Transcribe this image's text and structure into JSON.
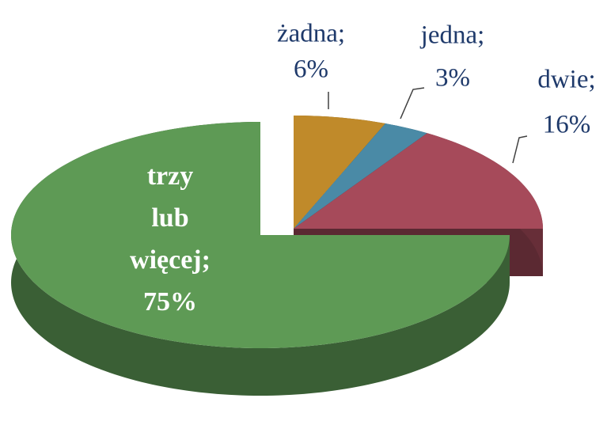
{
  "chart_data": {
    "type": "pie3d",
    "categories": [
      "żadna;",
      "jedna;",
      "dwie;",
      "trzy lub więcej;"
    ],
    "values": [
      6,
      3,
      16,
      75
    ],
    "value_labels": [
      "6%",
      "3%",
      "16%",
      "75%"
    ],
    "colors": [
      "#c08a2a",
      "#4a8aa6",
      "#a64a5a",
      "#5e9a55"
    ]
  }
}
